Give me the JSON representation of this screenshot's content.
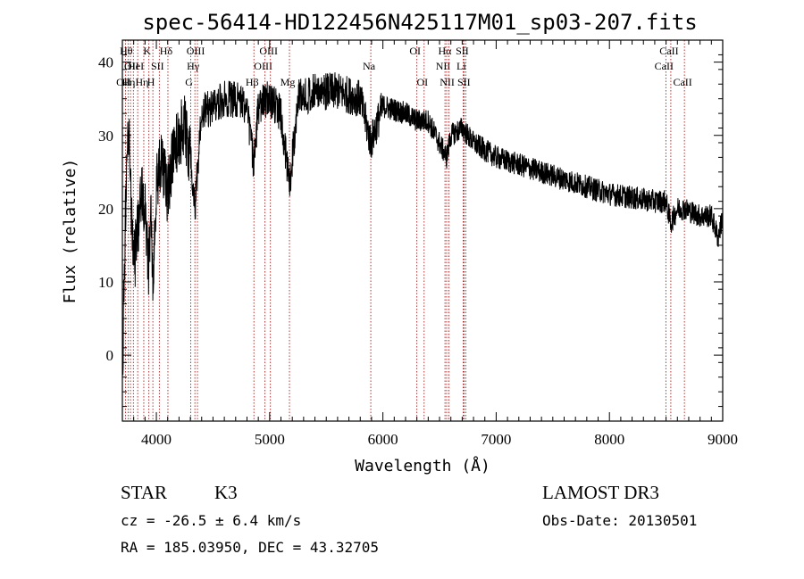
{
  "chart_data": {
    "type": "line",
    "title": "spec-56414-HD122456N425117M01_sp03-207.fits",
    "xlabel": "Wavelength (Å)",
    "ylabel": "Flux (relative)",
    "xlim": [
      3700,
      9000
    ],
    "ylim": [
      -9,
      43
    ],
    "x_ticks": [
      4000,
      5000,
      6000,
      7000,
      8000,
      9000
    ],
    "y_ticks": [
      0,
      10,
      20,
      30,
      40
    ],
    "x_tick_labels": [
      "4000",
      "5000",
      "6000",
      "7000",
      "8000",
      "9000"
    ],
    "y_tick_labels": [
      "0",
      "10",
      "20",
      "30",
      "40"
    ],
    "spectrum_envelope": {
      "x": [
        3700,
        3720,
        3740,
        3760,
        3780,
        3800,
        3830,
        3860,
        3900,
        3934,
        3950,
        3969,
        4000,
        4050,
        4102,
        4150,
        4200,
        4250,
        4300,
        4340,
        4400,
        4500,
        4600,
        4700,
        4800,
        4861,
        4900,
        5000,
        5100,
        5175,
        5250,
        5400,
        5600,
        5800,
        5893,
        6000,
        6200,
        6300,
        6400,
        6563,
        6600,
        6700,
        6800,
        7000,
        7200,
        7400,
        7600,
        7800,
        8000,
        8200,
        8400,
        8498,
        8542,
        8600,
        8662,
        8800,
        8900,
        8960,
        9000
      ],
      "y": [
        -4,
        14,
        28,
        30,
        18,
        12,
        16,
        22,
        20,
        12,
        20,
        10,
        24,
        26,
        22,
        28,
        30,
        31,
        27,
        20,
        33,
        34,
        35,
        35,
        34,
        26,
        34,
        35,
        33,
        23,
        35,
        36,
        36,
        35,
        29,
        34,
        33,
        32,
        32,
        27,
        30,
        31,
        29,
        27,
        26,
        25,
        24,
        23,
        22,
        21.5,
        21,
        21,
        18,
        20,
        20,
        19,
        19,
        16,
        19
      ]
    },
    "line_markers": [
      {
        "x": 3727,
        "label": "OII",
        "row": 2
      },
      {
        "x": 3750,
        "label": "Hθ",
        "row": 0
      },
      {
        "x": 3771,
        "label": "Hη",
        "row": 2
      },
      {
        "x": 3797,
        "label": "OII",
        "row": 1
      },
      {
        "x": 3835,
        "label": "HeI",
        "row": 1
      },
      {
        "x": 3889,
        "label": "Hη",
        "row": 2
      },
      {
        "x": 3934,
        "label": "K",
        "row": 0
      },
      {
        "x": 3969,
        "label": "H",
        "row": 2
      },
      {
        "x": 4026,
        "label": "SII",
        "row": 1
      },
      {
        "x": 4102,
        "label": "Hδ",
        "row": 0
      },
      {
        "x": 4304,
        "label": "G",
        "row": 2
      },
      {
        "x": 4340,
        "label": "Hγ",
        "row": 1
      },
      {
        "x": 4363,
        "label": "OIII",
        "row": 0
      },
      {
        "x": 4861,
        "label": "Hβ",
        "row": 2
      },
      {
        "x": 4959,
        "label": "OIII",
        "row": 1
      },
      {
        "x": 5007,
        "label": "OIII",
        "row": 0
      },
      {
        "x": 5175,
        "label": "Mg",
        "row": 2
      },
      {
        "x": 5893,
        "label": "Na",
        "row": 1
      },
      {
        "x": 6300,
        "label": "OI",
        "row": 0
      },
      {
        "x": 6364,
        "label": "OI",
        "row": 2
      },
      {
        "x": 6548,
        "label": "NII",
        "row": 1
      },
      {
        "x": 6563,
        "label": "Hα",
        "row": 0
      },
      {
        "x": 6583,
        "label": "NII",
        "row": 2
      },
      {
        "x": 6708,
        "label": "Li",
        "row": 1
      },
      {
        "x": 6716,
        "label": "SII",
        "row": 0
      },
      {
        "x": 6731,
        "label": "SII",
        "row": 2
      },
      {
        "x": 8498,
        "label": "CaII",
        "row": 1
      },
      {
        "x": 8542,
        "label": "CaII",
        "row": 0
      },
      {
        "x": 8662,
        "label": "CaII",
        "row": 2
      }
    ],
    "marker_color": "#aa0000",
    "line_color": "#000000"
  },
  "footer": {
    "object_type": "STAR",
    "subclass": "K3",
    "survey": "LAMOST DR3",
    "redshift": "cz = -26.5 ± 6.4 km/s",
    "obs_date": "Obs-Date: 20130501",
    "coords": "RA = 185.03950, DEC =  43.32705"
  }
}
